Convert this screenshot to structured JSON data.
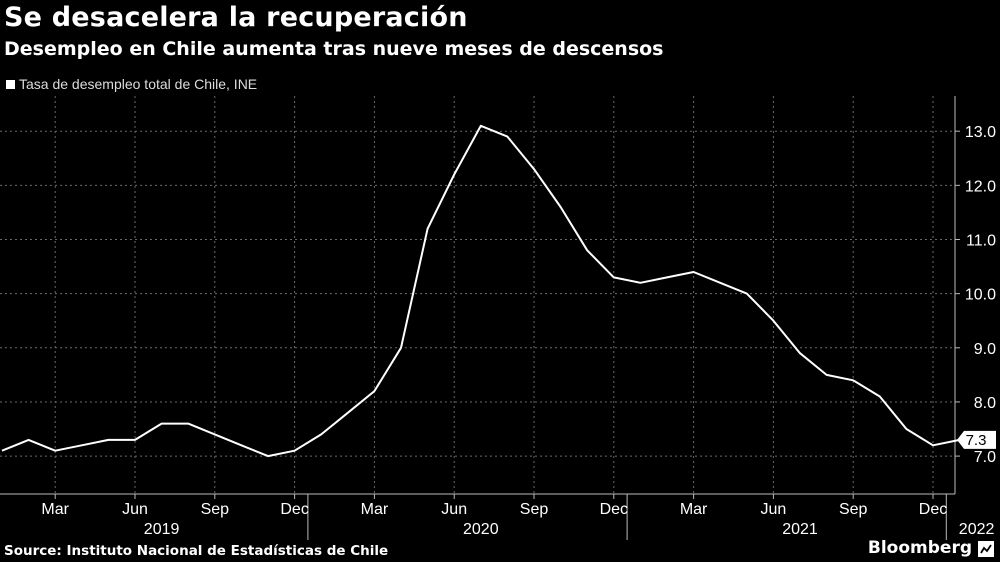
{
  "header": {
    "title": "Se desacelera la recuperación",
    "subtitle": "Desempleo en Chile aumenta tras nueve meses de descensos"
  },
  "footer": {
    "source": "Source: Instituto Nacional de Estadísticas de Chile",
    "brand": "Bloomberg"
  },
  "colors": {
    "background": "#000000",
    "line": "#ffffff",
    "grid": "#6a6a6a"
  },
  "chart_data": {
    "type": "line",
    "title": "Se desacelera la recuperación",
    "subtitle": "Desempleo en Chile aumenta tras nueve meses de descensos",
    "series": [
      {
        "name": "Tasa de desempleo total de Chile, INE",
        "x": [
          "2019-01",
          "2019-02",
          "2019-03",
          "2019-04",
          "2019-05",
          "2019-06",
          "2019-07",
          "2019-08",
          "2019-09",
          "2019-10",
          "2019-11",
          "2019-12",
          "2020-01",
          "2020-02",
          "2020-03",
          "2020-04",
          "2020-05",
          "2020-06",
          "2020-07",
          "2020-08",
          "2020-09",
          "2020-10",
          "2020-11",
          "2020-12",
          "2021-01",
          "2021-02",
          "2021-03",
          "2021-04",
          "2021-05",
          "2021-06",
          "2021-07",
          "2021-08",
          "2021-09",
          "2021-10",
          "2021-11",
          "2021-12",
          "2022-01"
        ],
        "values": [
          7.1,
          7.3,
          7.1,
          7.2,
          7.3,
          7.3,
          7.6,
          7.6,
          7.4,
          7.2,
          7.0,
          7.1,
          7.4,
          7.8,
          8.2,
          9.0,
          11.2,
          12.2,
          13.1,
          12.9,
          12.3,
          11.6,
          10.8,
          10.3,
          10.2,
          10.3,
          10.4,
          10.2,
          10.0,
          9.5,
          8.9,
          8.5,
          8.4,
          8.1,
          7.5,
          7.2,
          7.3
        ]
      }
    ],
    "last_value_label": "7.3",
    "y_ticks": [
      "7.0",
      "8.0",
      "9.0",
      "10.0",
      "11.0",
      "12.0",
      "13.0"
    ],
    "ylim": [
      6.3,
      13.65
    ],
    "x_tick_labels": [
      "Mar",
      "Jun",
      "Sep",
      "Dec",
      "Mar",
      "Jun",
      "Sep",
      "Dec",
      "Mar",
      "Jun",
      "Sep",
      "Dec"
    ],
    "x_tick_dates": [
      "2019-03",
      "2019-06",
      "2019-09",
      "2019-12",
      "2020-03",
      "2020-06",
      "2020-09",
      "2020-12",
      "2021-03",
      "2021-06",
      "2021-09",
      "2021-12"
    ],
    "year_labels": [
      "2019",
      "2020",
      "2021",
      "2022"
    ],
    "year_label_dates": [
      "2019-07",
      "2020-07",
      "2021-07",
      "2022-01"
    ],
    "y_axis_side": "right",
    "grid": true,
    "legend": "top-left"
  }
}
